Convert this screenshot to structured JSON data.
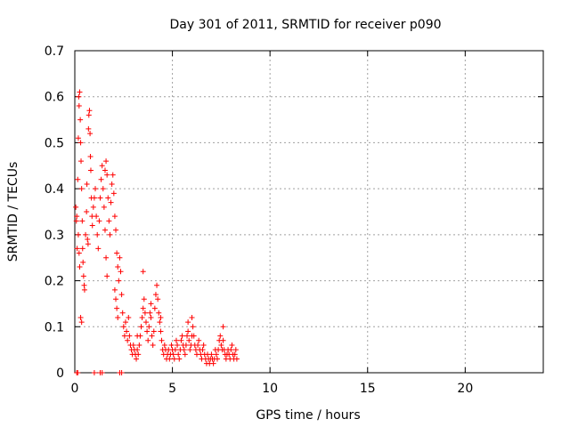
{
  "chart_data": {
    "type": "scatter",
    "title": "Day 301 of 2011, SRMTID for receiver p090",
    "xlabel": "GPS time / hours",
    "ylabel": "SRMTID / TECUs",
    "xlim": [
      0,
      24
    ],
    "ylim": [
      0,
      0.7
    ],
    "xticks": [
      0,
      5,
      10,
      15,
      20
    ],
    "yticks": [
      0,
      0.1,
      0.2,
      0.3,
      0.4,
      0.5,
      0.6,
      0.7
    ],
    "xtick_labels": [
      "0",
      "5",
      "10",
      "15",
      "20"
    ],
    "ytick_labels": [
      "0",
      "0.1",
      "0.2",
      "0.3",
      "0.4",
      "0.5",
      "0.6",
      "0.7"
    ],
    "grid": true,
    "marker": "+",
    "color": "#ff0000",
    "series": [
      {
        "name": "SRMTID",
        "points": [
          [
            0.05,
            0.36
          ],
          [
            0.08,
            0.33
          ],
          [
            0.1,
            0.34
          ],
          [
            0.12,
            0.27
          ],
          [
            0.15,
            0.42
          ],
          [
            0.18,
            0.51
          ],
          [
            0.2,
            0.6
          ],
          [
            0.22,
            0.58
          ],
          [
            0.25,
            0.61
          ],
          [
            0.28,
            0.55
          ],
          [
            0.3,
            0.5
          ],
          [
            0.32,
            0.46
          ],
          [
            0.35,
            0.4
          ],
          [
            0.38,
            0.33
          ],
          [
            0.4,
            0.27
          ],
          [
            0.42,
            0.24
          ],
          [
            0.45,
            0.21
          ],
          [
            0.48,
            0.19
          ],
          [
            0.5,
            0.18
          ],
          [
            0.3,
            0.12
          ],
          [
            0.35,
            0.11
          ],
          [
            0.25,
            0.23
          ],
          [
            0.22,
            0.26
          ],
          [
            0.18,
            0.3
          ],
          [
            0.55,
            0.3
          ],
          [
            0.6,
            0.35
          ],
          [
            0.62,
            0.41
          ],
          [
            0.65,
            0.29
          ],
          [
            0.68,
            0.28
          ],
          [
            0.7,
            0.53
          ],
          [
            0.72,
            0.56
          ],
          [
            0.75,
            0.57
          ],
          [
            0.78,
            0.52
          ],
          [
            0.8,
            0.47
          ],
          [
            0.82,
            0.44
          ],
          [
            0.85,
            0.38
          ],
          [
            0.88,
            0.34
          ],
          [
            0.9,
            0.32
          ],
          [
            0.95,
            0.36
          ],
          [
            1.0,
            0.38
          ],
          [
            1.05,
            0.4
          ],
          [
            1.1,
            0.34
          ],
          [
            1.15,
            0.3
          ],
          [
            1.2,
            0.27
          ],
          [
            1.25,
            0.33
          ],
          [
            1.3,
            0.38
          ],
          [
            1.35,
            0.42
          ],
          [
            1.4,
            0.45
          ],
          [
            1.45,
            0.4
          ],
          [
            1.5,
            0.36
          ],
          [
            1.55,
            0.31
          ],
          [
            1.6,
            0.25
          ],
          [
            1.65,
            0.21
          ],
          [
            1.55,
            0.44
          ],
          [
            1.6,
            0.46
          ],
          [
            1.65,
            0.43
          ],
          [
            1.7,
            0.38
          ],
          [
            1.75,
            0.33
          ],
          [
            1.8,
            0.3
          ],
          [
            1.85,
            0.37
          ],
          [
            1.9,
            0.41
          ],
          [
            1.95,
            0.43
          ],
          [
            2.0,
            0.39
          ],
          [
            2.05,
            0.34
          ],
          [
            2.1,
            0.31
          ],
          [
            2.15,
            0.26
          ],
          [
            2.2,
            0.23
          ],
          [
            2.25,
            0.2
          ],
          [
            2.05,
            0.18
          ],
          [
            2.1,
            0.16
          ],
          [
            2.15,
            0.14
          ],
          [
            2.2,
            0.12
          ],
          [
            2.3,
            0.25
          ],
          [
            2.35,
            0.22
          ],
          [
            2.4,
            0.17
          ],
          [
            2.45,
            0.13
          ],
          [
            2.5,
            0.1
          ],
          [
            2.55,
            0.08
          ],
          [
            2.6,
            0.11
          ],
          [
            2.65,
            0.09
          ],
          [
            2.7,
            0.07
          ],
          [
            2.75,
            0.12
          ],
          [
            2.8,
            0.08
          ],
          [
            2.85,
            0.06
          ],
          [
            2.9,
            0.05
          ],
          [
            2.95,
            0.04
          ],
          [
            3.0,
            0.06
          ],
          [
            3.05,
            0.05
          ],
          [
            3.1,
            0.04
          ],
          [
            3.15,
            0.03
          ],
          [
            3.2,
            0.05
          ],
          [
            3.25,
            0.04
          ],
          [
            3.3,
            0.06
          ],
          [
            3.35,
            0.08
          ],
          [
            3.4,
            0.1
          ],
          [
            3.45,
            0.12
          ],
          [
            3.5,
            0.14
          ],
          [
            3.55,
            0.16
          ],
          [
            3.6,
            0.13
          ],
          [
            3.65,
            0.11
          ],
          [
            3.7,
            0.09
          ],
          [
            3.75,
            0.07
          ],
          [
            3.8,
            0.1
          ],
          [
            3.85,
            0.13
          ],
          [
            3.9,
            0.12
          ],
          [
            3.95,
            0.08
          ],
          [
            4.0,
            0.06
          ],
          [
            4.05,
            0.09
          ],
          [
            4.1,
            0.14
          ],
          [
            4.15,
            0.17
          ],
          [
            4.2,
            0.19
          ],
          [
            4.25,
            0.16
          ],
          [
            4.3,
            0.13
          ],
          [
            4.35,
            0.11
          ],
          [
            4.4,
            0.09
          ],
          [
            4.45,
            0.07
          ],
          [
            4.5,
            0.05
          ],
          [
            4.55,
            0.04
          ],
          [
            4.6,
            0.06
          ],
          [
            4.65,
            0.05
          ],
          [
            4.7,
            0.03
          ],
          [
            4.75,
            0.04
          ],
          [
            4.8,
            0.05
          ],
          [
            4.85,
            0.03
          ],
          [
            4.9,
            0.04
          ],
          [
            4.95,
            0.06
          ],
          [
            5.0,
            0.05
          ],
          [
            5.05,
            0.04
          ],
          [
            5.1,
            0.03
          ],
          [
            5.15,
            0.05
          ],
          [
            5.2,
            0.07
          ],
          [
            5.25,
            0.06
          ],
          [
            5.3,
            0.04
          ],
          [
            5.35,
            0.03
          ],
          [
            5.4,
            0.05
          ],
          [
            5.45,
            0.07
          ],
          [
            5.5,
            0.08
          ],
          [
            5.55,
            0.06
          ],
          [
            5.6,
            0.05
          ],
          [
            5.65,
            0.04
          ],
          [
            5.7,
            0.06
          ],
          [
            5.75,
            0.08
          ],
          [
            5.8,
            0.09
          ],
          [
            5.85,
            0.07
          ],
          [
            5.9,
            0.05
          ],
          [
            5.95,
            0.06
          ],
          [
            6.0,
            0.08
          ],
          [
            6.05,
            0.1
          ],
          [
            6.1,
            0.08
          ],
          [
            6.15,
            0.06
          ],
          [
            6.2,
            0.05
          ],
          [
            6.25,
            0.04
          ],
          [
            6.3,
            0.06
          ],
          [
            6.35,
            0.07
          ],
          [
            6.4,
            0.05
          ],
          [
            6.45,
            0.04
          ],
          [
            6.5,
            0.03
          ],
          [
            6.55,
            0.05
          ],
          [
            6.6,
            0.06
          ],
          [
            6.65,
            0.04
          ],
          [
            6.7,
            0.03
          ],
          [
            6.75,
            0.02
          ],
          [
            6.8,
            0.04
          ],
          [
            6.85,
            0.03
          ],
          [
            6.9,
            0.02
          ],
          [
            6.95,
            0.03
          ],
          [
            7.0,
            0.04
          ],
          [
            7.05,
            0.03
          ],
          [
            7.1,
            0.02
          ],
          [
            7.15,
            0.03
          ],
          [
            7.2,
            0.05
          ],
          [
            7.25,
            0.04
          ],
          [
            7.3,
            0.03
          ],
          [
            7.35,
            0.05
          ],
          [
            7.4,
            0.07
          ],
          [
            7.45,
            0.08
          ],
          [
            7.5,
            0.06
          ],
          [
            7.55,
            0.05
          ],
          [
            7.6,
            0.07
          ],
          [
            7.65,
            0.05
          ],
          [
            7.7,
            0.04
          ],
          [
            7.75,
            0.03
          ],
          [
            7.8,
            0.04
          ],
          [
            7.85,
            0.05
          ],
          [
            7.9,
            0.04
          ],
          [
            7.95,
            0.03
          ],
          [
            8.0,
            0.05
          ],
          [
            8.05,
            0.06
          ],
          [
            8.1,
            0.04
          ],
          [
            8.15,
            0.03
          ],
          [
            8.2,
            0.04
          ],
          [
            8.25,
            0.05
          ],
          [
            8.3,
            0.03
          ],
          [
            3.2,
            0.08
          ],
          [
            3.5,
            0.22
          ],
          [
            3.9,
            0.15
          ],
          [
            4.4,
            0.12
          ],
          [
            5.8,
            0.11
          ],
          [
            6.0,
            0.12
          ],
          [
            7.6,
            0.1
          ],
          [
            0.1,
            0.0
          ],
          [
            0.15,
            0.0
          ],
          [
            1.0,
            0.0
          ],
          [
            1.3,
            0.0
          ],
          [
            1.4,
            0.0
          ],
          [
            2.3,
            0.0
          ],
          [
            2.4,
            0.0
          ]
        ]
      }
    ]
  }
}
